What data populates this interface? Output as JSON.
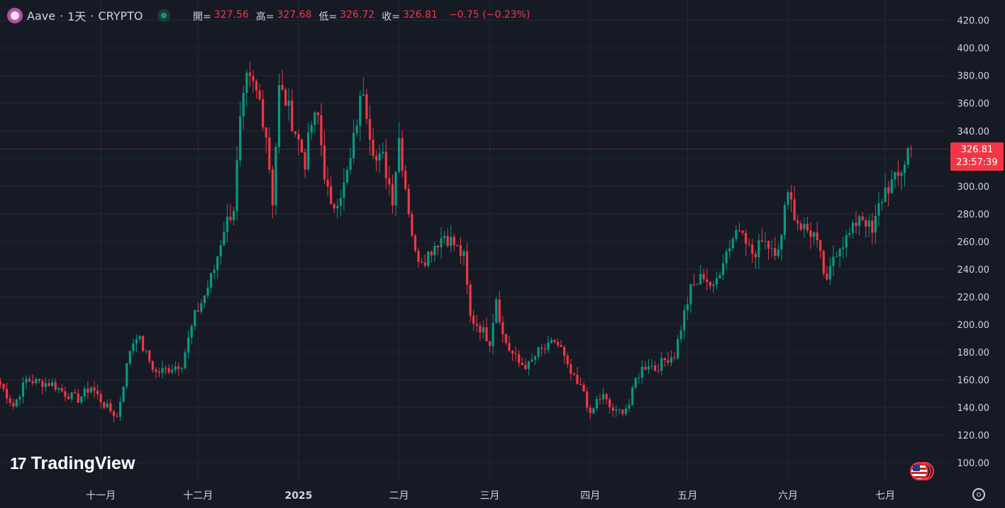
{
  "header": {
    "symbol": "Aave",
    "interval": "1天",
    "exchange": "CRYPTO",
    "sep": "·",
    "open_label": "開=",
    "open": "327.56",
    "high_label": "高=",
    "high": "327.68",
    "low_label": "低=",
    "low": "326.72",
    "close_label": "收=",
    "close": "326.81",
    "change": "−0.75 (−0.23%)"
  },
  "price_tag": {
    "price": "326.81",
    "countdown": "23:57:39"
  },
  "logo": {
    "mark": "17",
    "text": "TradingView"
  },
  "colors": {
    "up": "#089981",
    "down": "#f23645",
    "background": "#161a25",
    "grid": "#232837",
    "text": "#d1d4dc"
  },
  "chart_data": {
    "type": "candlestick",
    "y_axis": {
      "ticks": [
        "100.00",
        "120.00",
        "140.00",
        "160.00",
        "180.00",
        "200.00",
        "220.00",
        "240.00",
        "260.00",
        "280.00",
        "300.00",
        "320.00",
        "340.00",
        "360.00",
        "380.00",
        "400.00",
        "420.00"
      ],
      "ylim": [
        92,
        424
      ]
    },
    "x_axis": {
      "labels": [
        "十一月",
        "十二月",
        "2025",
        "二月",
        "三月",
        "四月",
        "五月",
        "六月",
        "七月"
      ],
      "label_day_index": [
        31,
        61,
        92,
        123,
        151,
        182,
        212,
        243,
        273
      ]
    },
    "current_price": 326.81,
    "first_day": "2024-10-01",
    "anchors_day_price": [
      [
        0,
        157
      ],
      [
        4,
        141
      ],
      [
        8,
        160
      ],
      [
        12,
        158
      ],
      [
        16,
        157
      ],
      [
        20,
        150
      ],
      [
        24,
        146
      ],
      [
        28,
        155
      ],
      [
        32,
        142
      ],
      [
        36,
        133
      ],
      [
        40,
        182
      ],
      [
        42,
        193
      ],
      [
        45,
        178
      ],
      [
        48,
        165
      ],
      [
        52,
        168
      ],
      [
        56,
        172
      ],
      [
        60,
        206
      ],
      [
        63,
        221
      ],
      [
        66,
        240
      ],
      [
        69,
        270
      ],
      [
        72,
        285
      ],
      [
        74,
        345
      ],
      [
        76,
        375
      ],
      [
        78,
        372
      ],
      [
        80,
        362
      ],
      [
        82,
        338
      ],
      [
        84,
        290
      ],
      [
        86,
        370
      ],
      [
        88,
        362
      ],
      [
        91,
        340
      ],
      [
        94,
        318
      ],
      [
        96,
        345
      ],
      [
        98,
        350
      ],
      [
        100,
        310
      ],
      [
        102,
        282
      ],
      [
        104,
        292
      ],
      [
        106,
        300
      ],
      [
        108,
        318
      ],
      [
        110,
        348
      ],
      [
        112,
        372
      ],
      [
        114,
        340
      ],
      [
        116,
        318
      ],
      [
        118,
        320
      ],
      [
        121,
        292
      ],
      [
        123,
        335
      ],
      [
        125,
        300
      ],
      [
        128,
        250
      ],
      [
        131,
        248
      ],
      [
        134,
        258
      ],
      [
        137,
        265
      ],
      [
        140,
        258
      ],
      [
        143,
        248
      ],
      [
        145,
        205
      ],
      [
        148,
        198
      ],
      [
        151,
        188
      ],
      [
        153,
        220
      ],
      [
        155,
        192
      ],
      [
        157,
        182
      ],
      [
        160,
        172
      ],
      [
        163,
        170
      ],
      [
        166,
        180
      ],
      [
        169,
        183
      ],
      [
        171,
        188
      ],
      [
        173,
        182
      ],
      [
        175,
        168
      ],
      [
        178,
        156
      ],
      [
        180,
        152
      ],
      [
        182,
        133
      ],
      [
        184,
        145
      ],
      [
        186,
        148
      ],
      [
        188,
        140
      ],
      [
        190,
        136
      ],
      [
        192,
        138
      ],
      [
        194,
        142
      ],
      [
        196,
        160
      ],
      [
        198,
        168
      ],
      [
        200,
        172
      ],
      [
        202,
        168
      ],
      [
        204,
        172
      ],
      [
        206,
        176
      ],
      [
        208,
        178
      ],
      [
        211,
        208
      ],
      [
        213,
        225
      ],
      [
        215,
        230
      ],
      [
        217,
        236
      ],
      [
        220,
        225
      ],
      [
        223,
        248
      ],
      [
        225,
        258
      ],
      [
        227,
        268
      ],
      [
        229,
        272
      ],
      [
        231,
        255
      ],
      [
        233,
        248
      ],
      [
        235,
        265
      ],
      [
        237,
        258
      ],
      [
        239,
        255
      ],
      [
        241,
        262
      ],
      [
        243,
        302
      ],
      [
        245,
        278
      ],
      [
        247,
        272
      ],
      [
        249,
        268
      ],
      [
        251,
        265
      ],
      [
        253,
        248
      ],
      [
        255,
        228
      ],
      [
        257,
        250
      ],
      [
        259,
        258
      ],
      [
        261,
        262
      ],
      [
        263,
        268
      ],
      [
        265,
        280
      ],
      [
        267,
        275
      ],
      [
        269,
        265
      ],
      [
        271,
        285
      ],
      [
        273,
        298
      ],
      [
        275,
        302
      ],
      [
        277,
        306
      ],
      [
        279,
        318
      ],
      [
        280,
        327.56
      ],
      [
        281,
        326.81
      ]
    ]
  }
}
